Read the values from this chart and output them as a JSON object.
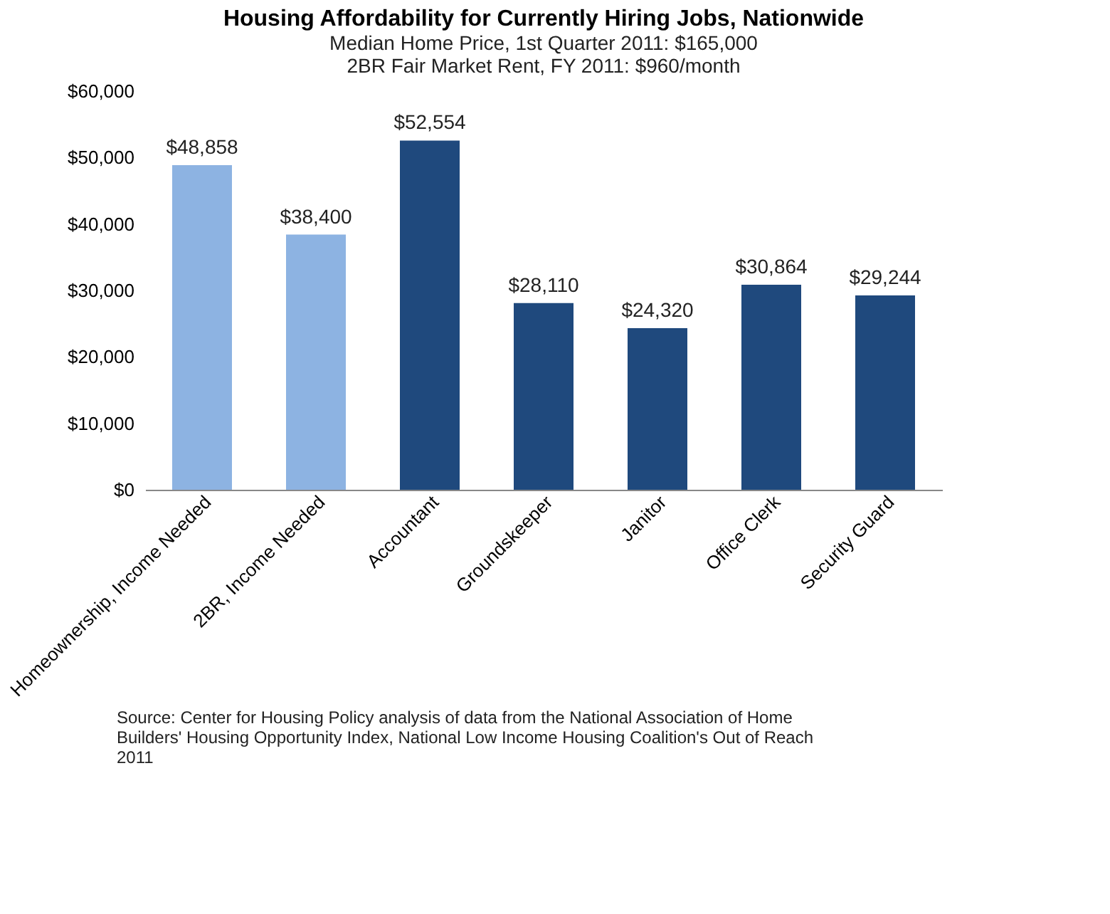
{
  "chart_data": {
    "type": "bar",
    "title": "Housing Affordability for Currently Hiring Jobs, Nationwide",
    "subtitle": "Median Home Price, 1st Quarter 2011: $165,000\n2BR Fair Market Rent, FY 2011: $960/month",
    "categories": [
      "Homeownership, Income Needed",
      "2BR, Income Needed",
      "Accountant",
      "Groundskeeper",
      "Janitor",
      "Office Clerk",
      "Security Guard"
    ],
    "values": [
      48858,
      38400,
      52554,
      28110,
      24320,
      30864,
      29244
    ],
    "value_labels": [
      "$48,858",
      "$38,400",
      "$52,554",
      "$28,110",
      "$24,320",
      "$30,864",
      "$29,244"
    ],
    "colors": [
      "#8db3e2",
      "#8db3e2",
      "#1f497d",
      "#1f497d",
      "#1f497d",
      "#1f497d",
      "#1f497d"
    ],
    "ylim": [
      0,
      60000
    ],
    "yticks": [
      {
        "value": 0,
        "label": "$0"
      },
      {
        "value": 10000,
        "label": "$10,000"
      },
      {
        "value": 20000,
        "label": "$20,000"
      },
      {
        "value": 30000,
        "label": "$30,000"
      },
      {
        "value": 40000,
        "label": "$40,000"
      },
      {
        "value": 50000,
        "label": "$50,000"
      },
      {
        "value": 60000,
        "label": "$60,000"
      }
    ],
    "grid": false,
    "annotations": [
      "Source: Center for Housing Policy analysis of data from the National Association of Home Builders' Housing Opportunity Index, National Low Income Housing Coalition's Out of Reach 2011"
    ]
  }
}
